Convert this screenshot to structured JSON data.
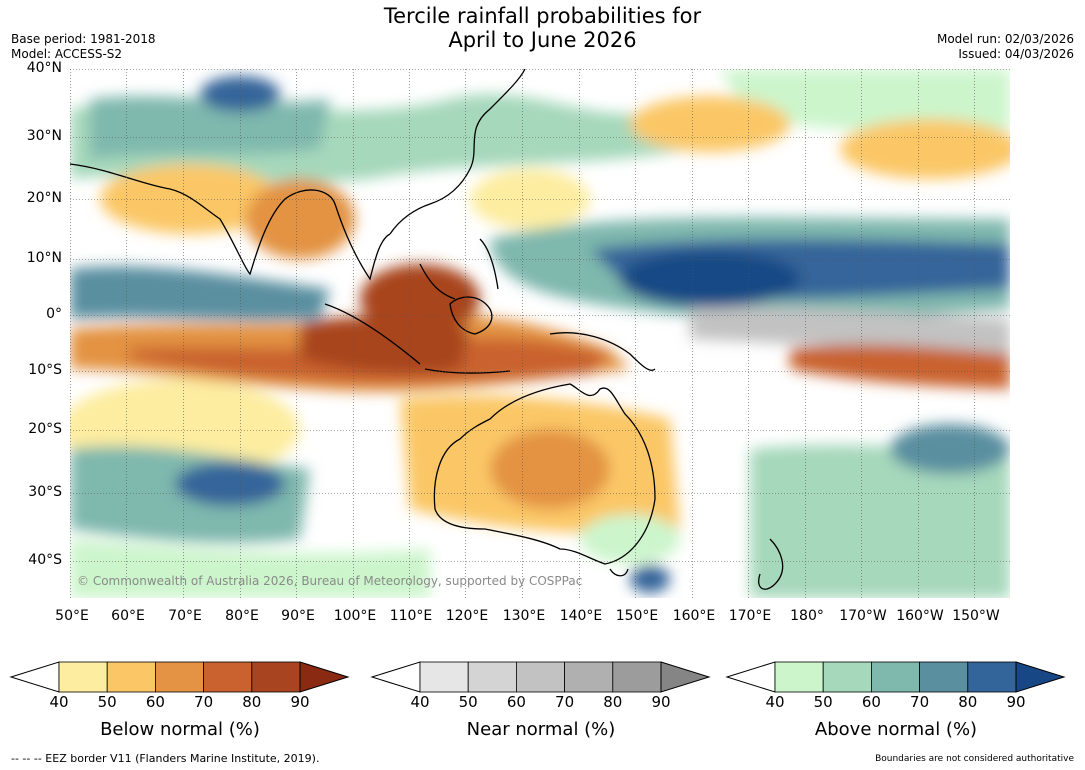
{
  "title_line1": "Tercile rainfall probabilities for",
  "title_line2": "April to June 2026",
  "base_period": "Base period: 1981-2018",
  "model": "Model: ACCESS-S2",
  "model_run": "Model run: 02/03/2026",
  "issued": "Issued: 04/03/2026",
  "copyright": "© Commonwealth of Australia 2026, Bureau of Meteorology, supported by COSPPac",
  "lat_labels": [
    "40°N",
    "30°N",
    "20°N",
    "10°N",
    "0°",
    "10°S",
    "20°S",
    "30°S",
    "40°S"
  ],
  "lon_labels": [
    "50°E",
    "60°E",
    "70°E",
    "80°E",
    "90°E",
    "100°E",
    "110°E",
    "120°E",
    "130°E",
    "140°E",
    "150°E",
    "160°E",
    "170°E",
    "180°",
    "170°W",
    "160°W",
    "150°W"
  ],
  "legends": {
    "below": {
      "title": "Below normal (%)",
      "ticks": [
        "40",
        "50",
        "60",
        "70",
        "80",
        "90"
      ],
      "colors": [
        "#fdeda0",
        "#fbc766",
        "#e39343",
        "#c9622f",
        "#a8441f",
        "#8b2a12"
      ]
    },
    "near": {
      "title": "Near normal (%)",
      "ticks": [
        "40",
        "50",
        "60",
        "70",
        "80",
        "90"
      ],
      "colors": [
        "#e6e6e6",
        "#d4d4d4",
        "#c2c2c2",
        "#b0b0b0",
        "#9c9c9c",
        "#858585"
      ]
    },
    "above": {
      "title": "Above normal (%)",
      "ticks": [
        "40",
        "50",
        "60",
        "70",
        "80",
        "90"
      ],
      "colors": [
        "#ccf5cc",
        "#a6d8bb",
        "#7fb8ad",
        "#5a8fa0",
        "#34659a",
        "#174885"
      ]
    }
  },
  "footer_left": "--  --  -- EEZ border V11 (Flanders Marine Institute, 2019).",
  "footer_right": "Boundaries are not considered authoritative"
}
